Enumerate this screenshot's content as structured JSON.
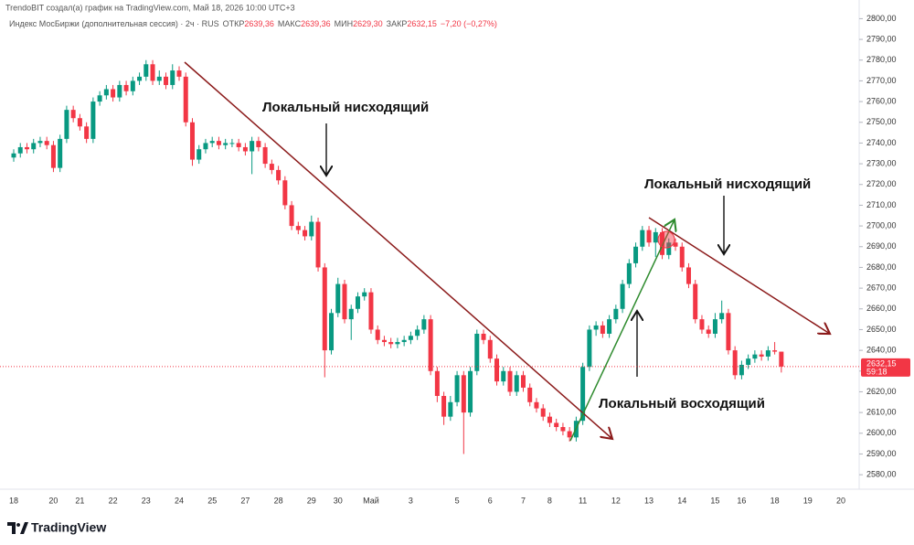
{
  "header": {
    "credit": "TrendoBIT создал(а) график на TradingView.com, Май 18, 2026 10:00 UTC+3",
    "instrument": "Индекс МосБиржи (дополнительная сессия) · 2ч · RUS",
    "open_label": "ОТКР",
    "open": "2639,36",
    "high_label": "МАКС",
    "high": "2639,36",
    "low_label": "МИН",
    "low": "2629,30",
    "close_label": "ЗАКР",
    "close": "2632,15",
    "change": "−7,20 (−0,27%)"
  },
  "logo": "TradingView",
  "chart_data": {
    "type": "candlestick",
    "up_color": "#089981",
    "down_color": "#f23645",
    "categories": [
      "18",
      null,
      null,
      null,
      null,
      null,
      "20",
      null,
      null,
      null,
      "21",
      null,
      null,
      null,
      null,
      "22",
      null,
      null,
      null,
      null,
      "23",
      null,
      null,
      null,
      null,
      "24",
      null,
      null,
      null,
      null,
      "25",
      null,
      null,
      null,
      null,
      "27",
      null,
      null,
      null,
      null,
      "28",
      null,
      null,
      null,
      null,
      "29",
      null,
      null,
      null,
      "30",
      null,
      null,
      null,
      null,
      "Май",
      null,
      null,
      null,
      null,
      null,
      "3",
      null,
      null,
      null,
      null,
      null,
      null,
      "5",
      null,
      null,
      null,
      null,
      "6",
      null,
      null,
      null,
      null,
      "7",
      null,
      null,
      null,
      "8",
      null,
      null,
      null,
      null,
      "11",
      null,
      null,
      null,
      null,
      "12",
      null,
      null,
      null,
      null,
      "13",
      null,
      null,
      null,
      null,
      "14",
      null,
      null,
      null,
      null,
      "15",
      null,
      null,
      null,
      "16",
      null,
      null,
      null,
      null,
      "18",
      null,
      null,
      null,
      null,
      "19",
      null,
      null,
      null,
      null,
      "20"
    ],
    "ohlc": [
      [
        2733,
        2737,
        2731,
        2735
      ],
      [
        2735,
        2740,
        2733,
        2738
      ],
      [
        2738,
        2740,
        2735,
        2737
      ],
      [
        2737,
        2742,
        2735,
        2740
      ],
      [
        2740,
        2743,
        2738,
        2741
      ],
      [
        2741,
        2743,
        2737,
        2739
      ],
      [
        2739,
        2741,
        2726,
        2728
      ],
      [
        2728,
        2744,
        2726,
        2742
      ],
      [
        2742,
        2758,
        2740,
        2756
      ],
      [
        2756,
        2758,
        2750,
        2752
      ],
      [
        2752,
        2754,
        2746,
        2748
      ],
      [
        2748,
        2750,
        2740,
        2742
      ],
      [
        2742,
        2762,
        2740,
        2760
      ],
      [
        2760,
        2765,
        2758,
        2763
      ],
      [
        2763,
        2768,
        2761,
        2766
      ],
      [
        2766,
        2768,
        2760,
        2762
      ],
      [
        2762,
        2770,
        2760,
        2768
      ],
      [
        2768,
        2770,
        2763,
        2765
      ],
      [
        2765,
        2772,
        2763,
        2770
      ],
      [
        2770,
        2774,
        2768,
        2772
      ],
      [
        2772,
        2780,
        2770,
        2778
      ],
      [
        2778,
        2780,
        2768,
        2770
      ],
      [
        2770,
        2775,
        2768,
        2772
      ],
      [
        2772,
        2774,
        2766,
        2768
      ],
      [
        2768,
        2778,
        2766,
        2775
      ],
      [
        2775,
        2777,
        2770,
        2772
      ],
      [
        2772,
        2774,
        2748,
        2750
      ],
      [
        2750,
        2752,
        2729,
        2732
      ],
      [
        2732,
        2739,
        2730,
        2737
      ],
      [
        2737,
        2742,
        2735,
        2740
      ],
      [
        2740,
        2743,
        2738,
        2741
      ],
      [
        2741,
        2743,
        2737,
        2739
      ],
      [
        2739,
        2742,
        2737,
        2740
      ],
      [
        2740,
        2742,
        2738,
        2740
      ],
      [
        2740,
        2742,
        2736,
        2738
      ],
      [
        2738,
        2740,
        2734,
        2736
      ],
      [
        2736,
        2743,
        2725,
        2741
      ],
      [
        2741,
        2743,
        2736,
        2738
      ],
      [
        2738,
        2740,
        2728,
        2730
      ],
      [
        2730,
        2732,
        2725,
        2727
      ],
      [
        2727,
        2729,
        2720,
        2722
      ],
      [
        2722,
        2724,
        2708,
        2710
      ],
      [
        2710,
        2712,
        2698,
        2700
      ],
      [
        2700,
        2702,
        2696,
        2698
      ],
      [
        2698,
        2700,
        2693,
        2695
      ],
      [
        2695,
        2705,
        2693,
        2702
      ],
      [
        2702,
        2704,
        2678,
        2680
      ],
      [
        2680,
        2682,
        2627,
        2640
      ],
      [
        2640,
        2660,
        2638,
        2658
      ],
      [
        2658,
        2675,
        2656,
        2672
      ],
      [
        2672,
        2674,
        2653,
        2655
      ],
      [
        2655,
        2662,
        2645,
        2660
      ],
      [
        2660,
        2668,
        2658,
        2666
      ],
      [
        2666,
        2670,
        2664,
        2668
      ],
      [
        2668,
        2670,
        2648,
        2650
      ],
      [
        2650,
        2652,
        2643,
        2645
      ],
      [
        2645,
        2647,
        2642,
        2644
      ],
      [
        2644,
        2646,
        2641,
        2643
      ],
      [
        2643,
        2646,
        2641,
        2644
      ],
      [
        2644,
        2647,
        2642,
        2645
      ],
      [
        2645,
        2649,
        2643,
        2647
      ],
      [
        2647,
        2652,
        2645,
        2650
      ],
      [
        2650,
        2657,
        2648,
        2655
      ],
      [
        2655,
        2657,
        2628,
        2630
      ],
      [
        2630,
        2632,
        2615,
        2618
      ],
      [
        2618,
        2620,
        2604,
        2608
      ],
      [
        2608,
        2618,
        2606,
        2615
      ],
      [
        2615,
        2630,
        2613,
        2628
      ],
      [
        2628,
        2630,
        2590,
        2610
      ],
      [
        2610,
        2632,
        2608,
        2630
      ],
      [
        2630,
        2650,
        2628,
        2648
      ],
      [
        2648,
        2650,
        2643,
        2645
      ],
      [
        2645,
        2647,
        2634,
        2636
      ],
      [
        2636,
        2638,
        2623,
        2625
      ],
      [
        2625,
        2632,
        2623,
        2630
      ],
      [
        2630,
        2632,
        2618,
        2620
      ],
      [
        2620,
        2630,
        2618,
        2628
      ],
      [
        2628,
        2630,
        2620,
        2622
      ],
      [
        2622,
        2624,
        2613,
        2615
      ],
      [
        2615,
        2617,
        2610,
        2612
      ],
      [
        2612,
        2614,
        2606,
        2608
      ],
      [
        2608,
        2610,
        2603,
        2605
      ],
      [
        2605,
        2607,
        2601,
        2603
      ],
      [
        2603,
        2605,
        2599,
        2601
      ],
      [
        2601,
        2603,
        2596,
        2598
      ],
      [
        2598,
        2608,
        2596,
        2606
      ],
      [
        2606,
        2634,
        2604,
        2632
      ],
      [
        2632,
        2652,
        2630,
        2650
      ],
      [
        2650,
        2654,
        2647,
        2652
      ],
      [
        2652,
        2654,
        2646,
        2648
      ],
      [
        2648,
        2657,
        2646,
        2655
      ],
      [
        2655,
        2662,
        2653,
        2660
      ],
      [
        2660,
        2674,
        2658,
        2672
      ],
      [
        2672,
        2684,
        2670,
        2682
      ],
      [
        2682,
        2692,
        2680,
        2690
      ],
      [
        2690,
        2700,
        2688,
        2698
      ],
      [
        2698,
        2700,
        2690,
        2692
      ],
      [
        2692,
        2699,
        2685,
        2697
      ],
      [
        2697,
        2699,
        2684,
        2686
      ],
      [
        2686,
        2694,
        2684,
        2692
      ],
      [
        2692,
        2694,
        2688,
        2690
      ],
      [
        2690,
        2692,
        2678,
        2680
      ],
      [
        2680,
        2682,
        2670,
        2672
      ],
      [
        2672,
        2674,
        2653,
        2655
      ],
      [
        2655,
        2657,
        2648,
        2650
      ],
      [
        2650,
        2652,
        2646,
        2648
      ],
      [
        2648,
        2658,
        2646,
        2655
      ],
      [
        2655,
        2664,
        2653,
        2658
      ],
      [
        2658,
        2660,
        2638,
        2640
      ],
      [
        2640,
        2642,
        2626,
        2628
      ],
      [
        2628,
        2635,
        2626,
        2633
      ],
      [
        2633,
        2638,
        2631,
        2636
      ],
      [
        2636,
        2640,
        2634,
        2638
      ],
      [
        2638,
        2640,
        2635,
        2637
      ],
      [
        2637,
        2642,
        2635,
        2640
      ],
      [
        2640,
        2644,
        2638,
        2639.36
      ],
      [
        2639.36,
        2639.36,
        2629.3,
        2632.15
      ],
      null,
      null,
      null,
      null,
      null,
      null,
      null,
      null,
      null
    ],
    "ylim": [
      2573,
      2809
    ],
    "yticks": [
      {
        "value": 2580,
        "label": "2580,00"
      },
      {
        "value": 2590,
        "label": "2590,00"
      },
      {
        "value": 2600,
        "label": "2600,00"
      },
      {
        "value": 2610,
        "label": "2610,00"
      },
      {
        "value": 2620,
        "label": "2620,00"
      },
      {
        "value": 2630,
        "label": "2630,00"
      },
      {
        "value": 2640,
        "label": "2640,00"
      },
      {
        "value": 2650,
        "label": "2650,00"
      },
      {
        "value": 2660,
        "label": "2660,00"
      },
      {
        "value": 2670,
        "label": "2670,00"
      },
      {
        "value": 2680,
        "label": "2680,00"
      },
      {
        "value": 2690,
        "label": "2690,00"
      },
      {
        "value": 2700,
        "label": "2700,00"
      },
      {
        "value": 2710,
        "label": "2710,00"
      },
      {
        "value": 2720,
        "label": "2720,00"
      },
      {
        "value": 2730,
        "label": "2730,00"
      },
      {
        "value": 2740,
        "label": "2740,00"
      },
      {
        "value": 2750,
        "label": "2750,00"
      },
      {
        "value": 2760,
        "label": "2760,00"
      },
      {
        "value": 2770,
        "label": "2770,00"
      },
      {
        "value": 2780,
        "label": "2780,00"
      },
      {
        "value": 2790,
        "label": "2790,00"
      },
      {
        "value": 2800,
        "label": "2800,00"
      }
    ],
    "last_price": {
      "value": 2632.15,
      "label": "2632,15"
    },
    "countdown": "59:18",
    "annotations": [
      "Локальный нисходящий",
      "Локальный нисходящий",
      "Локальный восходящий"
    ]
  }
}
